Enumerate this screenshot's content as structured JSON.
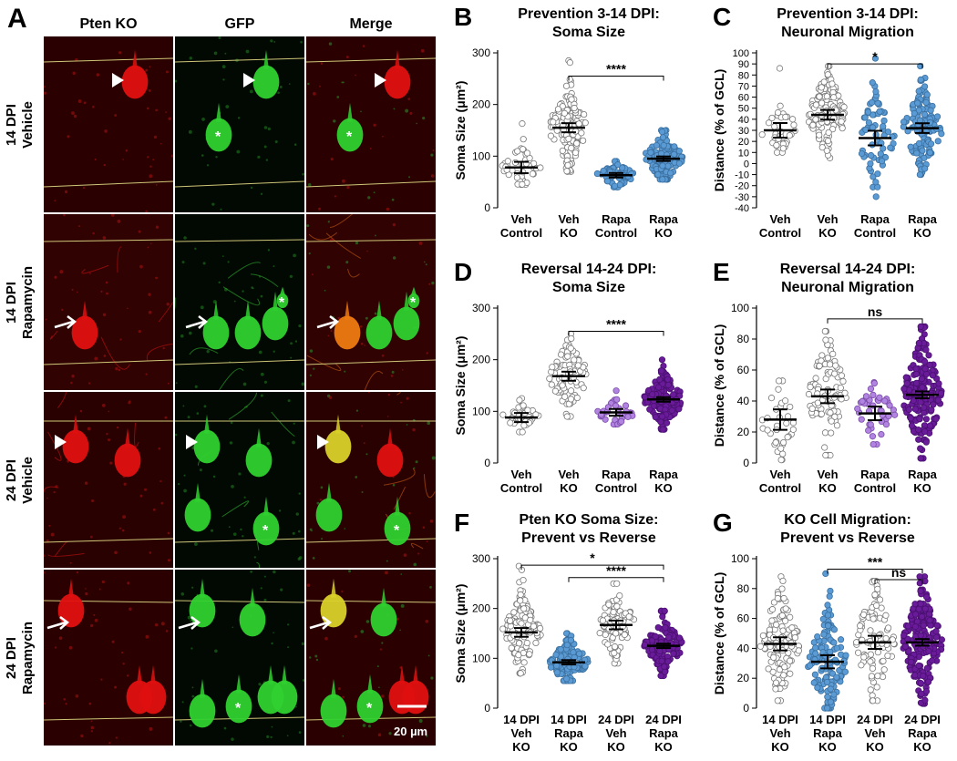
{
  "figure": {
    "panel_a": {
      "letter": "A",
      "columns": [
        "Pten KO",
        "GFP",
        "Merge"
      ],
      "rows": [
        {
          "label": "14 DPI\nVehicle",
          "bg": "#2a0000"
        },
        {
          "label": "14 DPI\nRapamycin",
          "bg": "#300202"
        },
        {
          "label": "24 DPI\nVehicle",
          "bg": "#2a0101"
        },
        {
          "label": "24 DPI\nRapamycin",
          "bg": "#2a0000"
        }
      ],
      "scale_bar": "20 µm"
    },
    "colors": {
      "red_channel": "#e01010",
      "green_channel": "#2fd12f",
      "merge_yellow": "#d9d12a",
      "veh_control": "#ffffff",
      "veh_ko": "#ffffff",
      "rapa_blue": "#5b9bd5",
      "rapa_purple": "#6a1b9a",
      "rapa_light_purple": "#b084e0"
    }
  },
  "chart_data": [
    {
      "panel": "B",
      "type": "scatter",
      "title": "Prevention 3-14 DPI:\nSoma Size",
      "ylabel": "Soma Size (μm²)",
      "ylim": [
        0,
        300
      ],
      "yticks": [
        0,
        100,
        200,
        300
      ],
      "categories": [
        "Veh\nControl",
        "Veh\nKO",
        "Rapa\nControl",
        "Rapa\nKO"
      ],
      "groups": [
        {
          "mean": 78,
          "sem": 5,
          "n": 45,
          "sd": 22,
          "min": 45,
          "max": 163,
          "fill": "#ffffff",
          "stroke": "#777777"
        },
        {
          "mean": 155,
          "sem": 4,
          "n": 120,
          "sd": 40,
          "min": 70,
          "max": 285,
          "fill": "#ffffff",
          "stroke": "#777777"
        },
        {
          "mean": 63,
          "sem": 2,
          "n": 60,
          "sd": 12,
          "min": 40,
          "max": 90,
          "fill": "#5b9bd5",
          "stroke": "#3a6f9e"
        },
        {
          "mean": 95,
          "sem": 2,
          "n": 130,
          "sd": 25,
          "min": 55,
          "max": 150,
          "fill": "#5b9bd5",
          "stroke": "#3a6f9e"
        }
      ],
      "brackets": [
        {
          "from": 1,
          "to": 3,
          "label": "****",
          "y": 255
        }
      ]
    },
    {
      "panel": "C",
      "type": "scatter",
      "title": "Prevention 3-14 DPI:\nNeuronal Migration",
      "ylabel": "Distance (% of GCL)",
      "ylim": [
        -40,
        100
      ],
      "yticks": [
        -40,
        -30,
        -20,
        -10,
        0,
        10,
        20,
        30,
        40,
        50,
        60,
        70,
        80,
        90,
        100
      ],
      "categories": [
        "Veh\nControl",
        "Veh\nKO",
        "Rapa\nControl",
        "Rapa\nKO"
      ],
      "groups": [
        {
          "mean": 30,
          "sem": 3,
          "n": 35,
          "sd": 12,
          "min": 10,
          "max": 86,
          "fill": "#ffffff",
          "stroke": "#777777"
        },
        {
          "mean": 44,
          "sem": 2,
          "n": 120,
          "sd": 20,
          "min": 5,
          "max": 88,
          "fill": "#ffffff",
          "stroke": "#777777"
        },
        {
          "mean": 23,
          "sem": 3,
          "n": 70,
          "sd": 22,
          "min": -30,
          "max": 95,
          "fill": "#5b9bd5",
          "stroke": "#3a6f9e"
        },
        {
          "mean": 32,
          "sem": 2,
          "n": 130,
          "sd": 20,
          "min": -10,
          "max": 88,
          "fill": "#5b9bd5",
          "stroke": "#3a6f9e"
        }
      ],
      "brackets": [
        {
          "from": 1,
          "to": 3,
          "label": "*",
          "y": 90
        }
      ]
    },
    {
      "panel": "D",
      "type": "scatter",
      "title": "Reversal 14-24 DPI:\nSoma Size",
      "ylabel": "Soma Size (μm²)",
      "ylim": [
        0,
        300
      ],
      "yticks": [
        0,
        100,
        200,
        300
      ],
      "categories": [
        "Veh\nControl",
        "Veh\nKO",
        "Rapa\nControl",
        "Rapa\nKO"
      ],
      "groups": [
        {
          "mean": 88,
          "sem": 4,
          "n": 35,
          "sd": 15,
          "min": 60,
          "max": 125,
          "fill": "#ffffff",
          "stroke": "#777777"
        },
        {
          "mean": 168,
          "sem": 4,
          "n": 90,
          "sd": 35,
          "min": 90,
          "max": 250,
          "fill": "#ffffff",
          "stroke": "#777777"
        },
        {
          "mean": 98,
          "sem": 3,
          "n": 35,
          "sd": 14,
          "min": 75,
          "max": 140,
          "fill": "#b084e0",
          "stroke": "#7a4aa8"
        },
        {
          "mean": 123,
          "sem": 2,
          "n": 150,
          "sd": 28,
          "min": 65,
          "max": 200,
          "fill": "#6a1b9a",
          "stroke": "#4a1070"
        }
      ],
      "brackets": [
        {
          "from": 1,
          "to": 3,
          "label": "****",
          "y": 255
        }
      ]
    },
    {
      "panel": "E",
      "type": "scatter",
      "title": "Reversal 14-24 DPI:\nNeuronal Migration",
      "ylabel": "Distance (% of GCL)",
      "ylim": [
        0,
        100
      ],
      "yticks": [
        0,
        20,
        40,
        60,
        80,
        100
      ],
      "categories": [
        "Veh\nControl",
        "Veh\nKO",
        "Rapa\nControl",
        "Rapa\nKO"
      ],
      "groups": [
        {
          "mean": 28,
          "sem": 3,
          "n": 35,
          "sd": 12,
          "min": 2,
          "max": 53,
          "fill": "#ffffff",
          "stroke": "#777777"
        },
        {
          "mean": 43,
          "sem": 2,
          "n": 90,
          "sd": 20,
          "min": 5,
          "max": 85,
          "fill": "#ffffff",
          "stroke": "#777777"
        },
        {
          "mean": 32,
          "sem": 2,
          "n": 40,
          "sd": 10,
          "min": 12,
          "max": 52,
          "fill": "#b084e0",
          "stroke": "#7a4aa8"
        },
        {
          "mean": 44,
          "sem": 1,
          "n": 200,
          "sd": 20,
          "min": 3,
          "max": 88,
          "fill": "#6a1b9a",
          "stroke": "#4a1070"
        }
      ],
      "brackets": [
        {
          "from": 1,
          "to": 3,
          "label": "ns",
          "y": 93
        }
      ]
    },
    {
      "panel": "F",
      "type": "scatter",
      "title": "Pten KO Soma Size:\nPrevent vs Reverse",
      "ylabel": "Soma Size (μm²)",
      "ylim": [
        0,
        300
      ],
      "yticks": [
        0,
        100,
        200,
        300
      ],
      "categories": [
        "14 DPI\nVeh\nKO",
        "14 DPI\nRapa\nKO",
        "24 DPI\nVeh\nKO",
        "24 DPI\nRapa\nKO"
      ],
      "groups": [
        {
          "mean": 152,
          "sem": 4,
          "n": 120,
          "sd": 40,
          "min": 70,
          "max": 285,
          "fill": "#ffffff",
          "stroke": "#777777"
        },
        {
          "mean": 92,
          "sem": 2,
          "n": 130,
          "sd": 25,
          "min": 55,
          "max": 150,
          "fill": "#5b9bd5",
          "stroke": "#3a6f9e"
        },
        {
          "mean": 167,
          "sem": 4,
          "n": 90,
          "sd": 35,
          "min": 90,
          "max": 250,
          "fill": "#ffffff",
          "stroke": "#777777"
        },
        {
          "mean": 125,
          "sem": 2,
          "n": 150,
          "sd": 28,
          "min": 65,
          "max": 195,
          "fill": "#6a1b9a",
          "stroke": "#4a1070"
        }
      ],
      "brackets": [
        {
          "from": 0,
          "to": 3,
          "label": "*",
          "y": 287
        },
        {
          "from": 1,
          "to": 3,
          "label": "****",
          "y": 262
        }
      ]
    },
    {
      "panel": "G",
      "type": "scatter",
      "title": "KO Cell Migration:\nPrevent vs Reverse",
      "ylabel": "Distance (% of GCL)",
      "ylim": [
        0,
        100
      ],
      "yticks": [
        0,
        20,
        40,
        60,
        80,
        100
      ],
      "categories": [
        "14 DPI\nVeh\nKO",
        "14 DPI\nRapa\nKO",
        "24 DPI\nVeh\nKO",
        "24 DPI\nRapa\nKO"
      ],
      "groups": [
        {
          "mean": 43,
          "sem": 2,
          "n": 120,
          "sd": 20,
          "min": 5,
          "max": 88,
          "fill": "#ffffff",
          "stroke": "#777777"
        },
        {
          "mean": 31,
          "sem": 2,
          "n": 130,
          "sd": 18,
          "min": 0,
          "max": 90,
          "fill": "#5b9bd5",
          "stroke": "#3a6f9e"
        },
        {
          "mean": 44,
          "sem": 2,
          "n": 90,
          "sd": 20,
          "min": 5,
          "max": 85,
          "fill": "#ffffff",
          "stroke": "#777777"
        },
        {
          "mean": 44,
          "sem": 1,
          "n": 200,
          "sd": 20,
          "min": 3,
          "max": 88,
          "fill": "#6a1b9a",
          "stroke": "#4a1070"
        }
      ],
      "brackets": [
        {
          "from": 1,
          "to": 3,
          "label": "***",
          "y": 93
        },
        {
          "from": 2,
          "to": 3,
          "label": "ns",
          "y": 86
        }
      ]
    }
  ]
}
